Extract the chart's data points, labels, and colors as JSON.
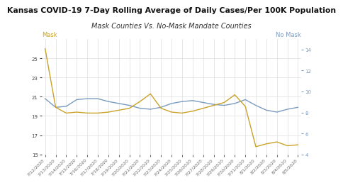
{
  "title": "Kansas COVID-19 7-Day Rolling Average of Daily Cases/Per 100K Population",
  "subtitle": "Mask Counties Vs. No-Mask Mandate Counties",
  "mask_label": "Mask",
  "nomask_label": "No Mask",
  "dates": [
    "7/12/2020",
    "7/13/2020",
    "7/14/2020",
    "7/15/2020",
    "7/16/2020",
    "7/17/2020",
    "7/18/2020",
    "7/19/2020",
    "7/20/2020",
    "7/21/2020",
    "7/22/2020",
    "7/23/2020",
    "7/24/2020",
    "7/25/2020",
    "7/26/2020",
    "7/27/2020",
    "7/28/2020",
    "7/29/2020",
    "7/30/2020",
    "7/31/2020",
    "8/1/2020",
    "8/2/2020",
    "8/3/2020",
    "8/4/2020",
    "8/5/2020"
  ],
  "blue_data": [
    20.8,
    19.9,
    20.0,
    20.7,
    20.8,
    20.8,
    20.5,
    20.3,
    20.1,
    19.8,
    19.7,
    19.9,
    20.3,
    20.5,
    20.6,
    20.4,
    20.2,
    20.1,
    20.3,
    20.7,
    20.1,
    19.6,
    19.4,
    19.7,
    19.9
  ],
  "gold_data": [
    26.0,
    19.9,
    19.3,
    19.4,
    19.3,
    19.3,
    19.4,
    19.6,
    19.8,
    20.5,
    21.3,
    19.8,
    19.4,
    19.3,
    19.5,
    19.8,
    20.1,
    20.4,
    21.2,
    20.0,
    15.8,
    16.1,
    16.3,
    15.9,
    16.0
  ],
  "blue_color": "#7a9bbf",
  "gold_color": "#c9a227",
  "mask_label_color": "#c9a227",
  "nomask_label_color": "#7a9bbf",
  "left_ylim": [
    15,
    27
  ],
  "right_ylim": [
    4,
    15
  ],
  "left_yticks": [
    15,
    17,
    19,
    21,
    23,
    25
  ],
  "right_yticks": [
    4,
    6,
    8,
    10,
    12,
    14
  ],
  "bg_color": "#ffffff",
  "grid_color": "#dddddd",
  "title_fontsize": 7.8,
  "subtitle_fontsize": 7.0,
  "tick_fontsize": 5.0,
  "label_fontsize": 6.0,
  "line_width": 1.0
}
